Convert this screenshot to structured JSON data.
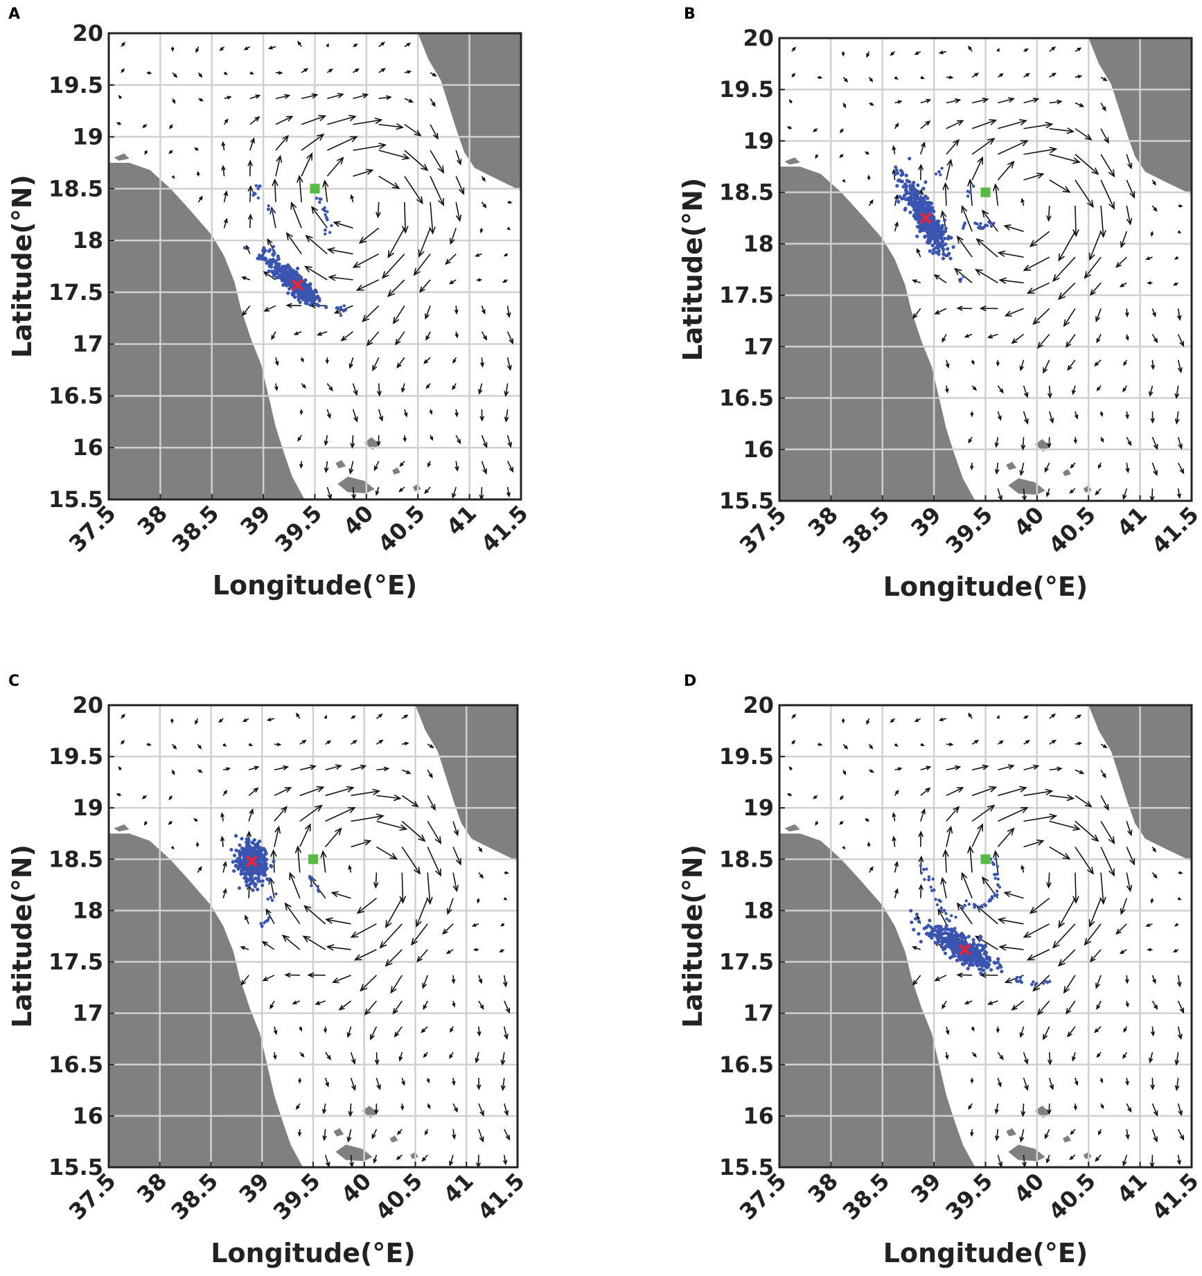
{
  "colors": {
    "land": "#808080",
    "sea": "#ffffff",
    "grid": "#d0d0d0",
    "arrow": "#111111",
    "particles": "#3a55b0",
    "release_marker": "#55bb44",
    "centroid_marker": "#ee2233",
    "frame": "#222222"
  },
  "axes": {
    "xlabel": "Longitude(°E)",
    "ylabel": "Latitude(°N)",
    "xlim": [
      37.5,
      41.5
    ],
    "ylim": [
      15.5,
      20
    ],
    "xticks": [
      "37.5",
      "38",
      "38.5",
      "39",
      "39.5",
      "40",
      "40.5",
      "41",
      "41.5"
    ],
    "yticks": [
      "15.5",
      "16",
      "16.5",
      "17",
      "17.5",
      "18",
      "18.5",
      "19",
      "19.5",
      "20"
    ]
  },
  "map": {
    "release_point": [
      39.5,
      18.5
    ],
    "coastline_west": [
      [
        37.5,
        18.75
      ],
      [
        37.7,
        18.75
      ],
      [
        37.9,
        18.68
      ],
      [
        38.1,
        18.5
      ],
      [
        38.3,
        18.28
      ],
      [
        38.5,
        18.05
      ],
      [
        38.62,
        17.85
      ],
      [
        38.72,
        17.6
      ],
      [
        38.78,
        17.35
      ],
      [
        38.88,
        17.05
      ],
      [
        38.98,
        16.8
      ],
      [
        39.05,
        16.5
      ],
      [
        39.12,
        16.2
      ],
      [
        39.2,
        15.95
      ],
      [
        39.28,
        15.72
      ],
      [
        39.4,
        15.5
      ]
    ],
    "coastline_east": [
      [
        40.5,
        20.0
      ],
      [
        40.6,
        19.75
      ],
      [
        40.72,
        19.55
      ],
      [
        40.8,
        19.3
      ],
      [
        40.88,
        19.05
      ],
      [
        40.95,
        18.85
      ],
      [
        41.05,
        18.7
      ],
      [
        41.25,
        18.6
      ],
      [
        41.5,
        18.48
      ]
    ],
    "islands": [
      [
        [
          39.72,
          15.65
        ],
        [
          39.82,
          15.72
        ],
        [
          39.98,
          15.68
        ],
        [
          40.08,
          15.6
        ],
        [
          40.0,
          15.56
        ],
        [
          39.82,
          15.57
        ]
      ],
      [
        [
          39.98,
          16.05
        ],
        [
          40.05,
          16.1
        ],
        [
          40.13,
          16.03
        ],
        [
          40.06,
          15.98
        ]
      ],
      [
        [
          39.7,
          15.85
        ],
        [
          39.76,
          15.88
        ],
        [
          39.8,
          15.82
        ],
        [
          39.73,
          15.8
        ]
      ],
      [
        [
          40.25,
          15.78
        ],
        [
          40.3,
          15.81
        ],
        [
          40.33,
          15.76
        ],
        [
          40.27,
          15.74
        ]
      ],
      [
        [
          40.45,
          15.62
        ],
        [
          40.5,
          15.65
        ],
        [
          40.53,
          15.6
        ],
        [
          40.47,
          15.58
        ]
      ],
      [
        [
          37.55,
          18.8
        ],
        [
          37.65,
          18.84
        ],
        [
          37.7,
          18.79
        ],
        [
          37.6,
          18.77
        ]
      ]
    ]
  },
  "chart_data": [
    {
      "type": "scatter",
      "panel": "A",
      "xlabel": "Longitude(°E)",
      "ylabel": "Latitude(°N)",
      "xlim": [
        37.5,
        41.5
      ],
      "ylim": [
        15.5,
        20
      ],
      "series": [
        {
          "role": "particle_cloud",
          "centroid": [
            39.33,
            17.57
          ],
          "spread_along": [
            0.38,
            0.22
          ],
          "spread_across": 0.04,
          "angle_deg": -42,
          "count": 520,
          "sparse_points": [
            [
              38.95,
              18.5
            ],
            [
              38.92,
              18.45
            ],
            [
              39.05,
              18.3
            ],
            [
              39.55,
              18.4
            ],
            [
              39.58,
              18.3
            ],
            [
              39.62,
              18.2
            ],
            [
              39.6,
              18.1
            ],
            [
              39.1,
              17.9
            ],
            [
              39.72,
              17.35
            ],
            [
              39.78,
              17.32
            ]
          ]
        },
        {
          "role": "centroid",
          "x": [
            39.33
          ],
          "y": [
            17.57
          ]
        },
        {
          "role": "release",
          "x": [
            39.5
          ],
          "y": [
            18.5
          ]
        }
      ]
    },
    {
      "type": "scatter",
      "panel": "B",
      "xlabel": "Longitude(°E)",
      "ylabel": "Latitude(°N)",
      "xlim": [
        37.5,
        41.5
      ],
      "ylim": [
        15.5,
        20
      ],
      "series": [
        {
          "role": "particle_cloud",
          "centroid": [
            38.92,
            18.25
          ],
          "spread_along": [
            0.42,
            0.32
          ],
          "spread_across": 0.05,
          "angle_deg": -62,
          "count": 560,
          "sparse_points": [
            [
              39.4,
              18.2
            ],
            [
              39.45,
              18.15
            ],
            [
              39.5,
              18.18
            ],
            [
              39.55,
              18.2
            ],
            [
              39.3,
              18.2
            ],
            [
              39.35,
              18.5
            ],
            [
              39.05,
              18.7
            ],
            [
              38.8,
              18.55
            ],
            [
              39.25,
              17.65
            ]
          ]
        },
        {
          "role": "centroid",
          "x": [
            38.92
          ],
          "y": [
            18.25
          ]
        },
        {
          "role": "release",
          "x": [
            39.5
          ],
          "y": [
            18.5
          ]
        }
      ]
    },
    {
      "type": "scatter",
      "panel": "C",
      "xlabel": "Longitude(°E)",
      "ylabel": "Latitude(°N)",
      "xlim": [
        37.5,
        41.5
      ],
      "ylim": [
        15.5,
        20
      ],
      "series": [
        {
          "role": "particle_cloud",
          "centroid": [
            38.9,
            18.48
          ],
          "spread_along": [
            0.18,
            0.2
          ],
          "spread_across": 0.07,
          "angle_deg": -80,
          "count": 520,
          "sparse_points": [
            [
              39.0,
              17.85
            ],
            [
              39.05,
              17.9
            ],
            [
              39.5,
              18.3
            ],
            [
              39.55,
              18.2
            ],
            [
              39.1,
              18.1
            ]
          ]
        },
        {
          "role": "centroid",
          "x": [
            38.9
          ],
          "y": [
            18.48
          ]
        },
        {
          "role": "release",
          "x": [
            39.5
          ],
          "y": [
            18.5
          ]
        }
      ]
    },
    {
      "type": "scatter",
      "panel": "D",
      "xlabel": "Longitude(°E)",
      "ylabel": "Latitude(°N)",
      "xlim": [
        37.5,
        41.5
      ],
      "ylim": [
        15.5,
        20
      ],
      "series": [
        {
          "role": "particle_cloud",
          "centroid": [
            39.3,
            17.62
          ],
          "spread_along": [
            0.4,
            0.3
          ],
          "spread_across": 0.05,
          "angle_deg": -32,
          "count": 520,
          "trail_points": [
            [
              38.9,
              18.4
            ],
            [
              38.95,
              18.3
            ],
            [
              39.0,
              18.2
            ],
            [
              39.05,
              18.1
            ],
            [
              39.1,
              18.0
            ],
            [
              39.15,
              17.9
            ],
            [
              39.2,
              17.8
            ],
            [
              39.25,
              17.7
            ],
            [
              39.3,
              18.05
            ],
            [
              39.4,
              18.05
            ],
            [
              39.5,
              18.05
            ],
            [
              39.55,
              18.1
            ],
            [
              39.6,
              18.15
            ],
            [
              39.62,
              18.25
            ],
            [
              39.6,
              18.35
            ],
            [
              39.58,
              18.45
            ],
            [
              39.55,
              18.5
            ],
            [
              39.45,
              17.75
            ],
            [
              39.5,
              17.65
            ],
            [
              39.8,
              17.32
            ],
            [
              39.85,
              17.3
            ],
            [
              39.95,
              17.28
            ],
            [
              40.1,
              17.3
            ]
          ]
        },
        {
          "role": "centroid",
          "x": [
            39.3
          ],
          "y": [
            17.62
          ]
        },
        {
          "role": "release",
          "x": [
            39.5
          ],
          "y": [
            18.5
          ]
        }
      ]
    }
  ],
  "panels": [
    {
      "id": "A",
      "label": "A"
    },
    {
      "id": "B",
      "label": "B"
    },
    {
      "id": "C",
      "label": "C"
    },
    {
      "id": "D",
      "label": "D"
    }
  ]
}
